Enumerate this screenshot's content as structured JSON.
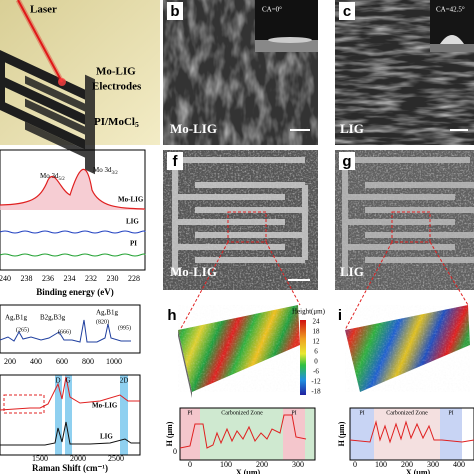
{
  "panel_a": {
    "laser": "Laser",
    "electrodes_1": "Mo-LIG",
    "electrodes_2": "Electrodes",
    "substrate": "PI/MoCl",
    "substrate_sub": "5"
  },
  "panel_b": {
    "label": "b",
    "contact_angle": "CA=0°",
    "sample": "Mo-LIG"
  },
  "panel_c": {
    "label": "c",
    "contact_angle": "CA=42.5°",
    "sample": "LIG"
  },
  "xps": {
    "peak_1": {
      "text": "Mo 3d",
      "sub": "5/2"
    },
    "peak_2": {
      "text": "Mo 3d",
      "sub": "3/2"
    },
    "series": [
      "Mo-LIG",
      "LIG",
      "PI"
    ],
    "xticks": [
      "240",
      "238",
      "236",
      "234",
      "232",
      "230",
      "228"
    ],
    "xlabel": "Binding energy (eV)"
  },
  "raman_low": {
    "peaks": [
      "Ag,B1g",
      "B2g,B3g",
      "Ag,B1g"
    ],
    "positions": [
      "(265)",
      "(666)",
      "(820)",
      "(995)"
    ],
    "xticks": [
      "200",
      "400",
      "600",
      "800",
      "1000"
    ]
  },
  "raman_high": {
    "bands": [
      "D",
      "G",
      "2D"
    ],
    "series": [
      "Mo-LIG",
      "LIG"
    ],
    "xticks": [
      "1500",
      "2000",
      "2500"
    ],
    "xlabel": "Raman Shift (cm⁻¹)"
  },
  "panel_f": {
    "label": "f",
    "sample": "Mo-LIG"
  },
  "panel_g": {
    "label": "g",
    "sample": "LIG"
  },
  "panel_h": {
    "label": "h",
    "colorbar_title": "Height(μm)",
    "colorbar_ticks": [
      "24",
      "18",
      "12",
      "6",
      "0",
      "-6",
      "-12",
      "-18"
    ],
    "profile": {
      "ylabel": "H (μm)",
      "yticks": [
        "0"
      ],
      "zones": [
        "PI",
        "Carbonized Zone",
        "PI"
      ],
      "xticks": [
        "0",
        "100",
        "200",
        "300"
      ],
      "xlabel": "X (μm)"
    }
  },
  "panel_i": {
    "label": "i",
    "profile": {
      "ylabel": "H (μm)",
      "zones": [
        "PI",
        "Carbonized Zone",
        "PI"
      ],
      "xticks": [
        "0",
        "100",
        "200",
        "300",
        "400"
      ],
      "xlabel": "X (μm)"
    }
  }
}
